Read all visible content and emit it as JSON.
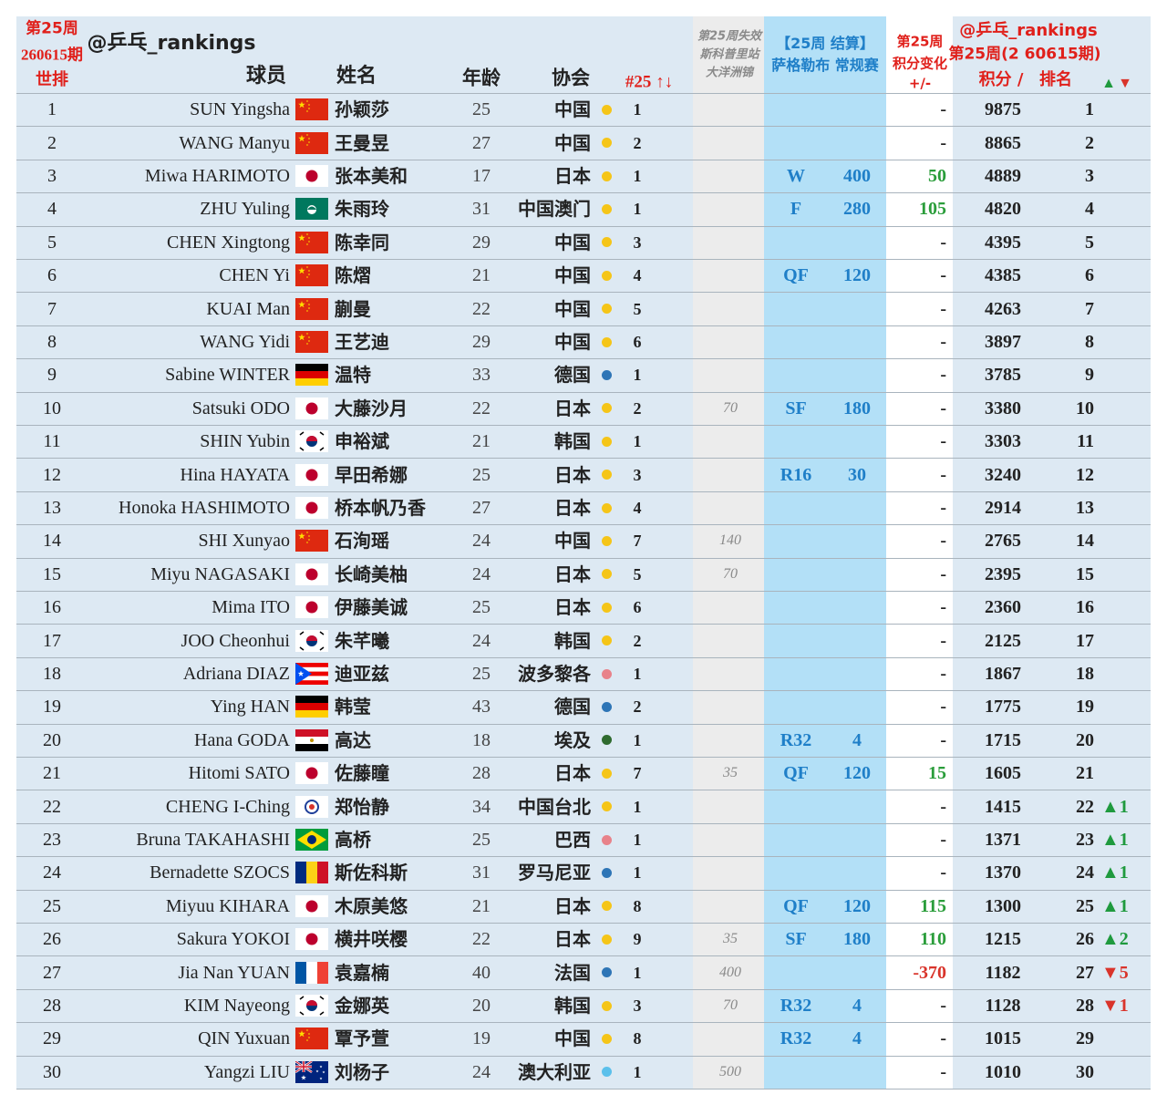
{
  "header": {
    "col_rank": [
      "第25周",
      "260615期",
      "世排"
    ],
    "handle": "@乒乓_rankings",
    "player": "球员",
    "name": "姓名",
    "age": "年龄",
    "assoc": "协会",
    "assoc_rank": "#25 ↑↓",
    "expired": [
      "第25周失效",
      "斯科普里站",
      "大洋洲锦"
    ],
    "event": [
      "【25周 结算】",
      "萨格勒布 常规赛"
    ],
    "change": [
      "第25周",
      "积分变化",
      "+/-"
    ],
    "current": [
      "@乒乓_rankings",
      "第25周(2 60615期)",
      "积分 /",
      "排名"
    ],
    "arrows": [
      "▲",
      "▼"
    ]
  },
  "rows": [
    {
      "rank": "1",
      "en": "SUN Yingsha",
      "flag": "cn",
      "cn": "孙颖莎",
      "age": "25",
      "assoc": "中国",
      "dot": "#f5c518",
      "arank": "1",
      "change": "-",
      "points": "9875",
      "cur": "1"
    },
    {
      "rank": "2",
      "en": "WANG Manyu",
      "flag": "cn",
      "cn": "王曼昱",
      "age": "27",
      "assoc": "中国",
      "dot": "#f5c518",
      "arank": "2",
      "change": "-",
      "points": "8865",
      "cur": "2"
    },
    {
      "rank": "3",
      "en": "Miwa HARIMOTO",
      "flag": "jp",
      "cn": "张本美和",
      "age": "17",
      "assoc": "日本",
      "dot": "#f5c518",
      "arank": "1",
      "round": "W",
      "rpts": "400",
      "change": "50",
      "change_color": "#2a9d3a",
      "points": "4889",
      "cur": "3"
    },
    {
      "rank": "4",
      "en": "ZHU Yuling",
      "flag": "mo",
      "cn": "朱雨玲",
      "age": "31",
      "assoc": "中国澳门",
      "dot": "#f5c518",
      "arank": "1",
      "round": "F",
      "rpts": "280",
      "change": "105",
      "change_color": "#2a9d3a",
      "points": "4820",
      "cur": "4"
    },
    {
      "rank": "5",
      "en": "CHEN Xingtong",
      "flag": "cn",
      "cn": "陈幸同",
      "age": "29",
      "assoc": "中国",
      "dot": "#f5c518",
      "arank": "3",
      "change": "-",
      "points": "4395",
      "cur": "5"
    },
    {
      "rank": "6",
      "en": "CHEN Yi",
      "flag": "cn",
      "cn": "陈熠",
      "age": "21",
      "assoc": "中国",
      "dot": "#f5c518",
      "arank": "4",
      "round": "QF",
      "rpts": "120",
      "change": "-",
      "points": "4385",
      "cur": "6"
    },
    {
      "rank": "7",
      "en": "KUAI Man",
      "flag": "cn",
      "cn": "蒯曼",
      "age": "22",
      "assoc": "中国",
      "dot": "#f5c518",
      "arank": "5",
      "change": "-",
      "points": "4263",
      "cur": "7"
    },
    {
      "rank": "8",
      "en": "WANG Yidi",
      "flag": "cn",
      "cn": "王艺迪",
      "age": "29",
      "assoc": "中国",
      "dot": "#f5c518",
      "arank": "6",
      "change": "-",
      "points": "3897",
      "cur": "8"
    },
    {
      "rank": "9",
      "en": "Sabine WINTER",
      "flag": "de",
      "cn": "温特",
      "age": "33",
      "assoc": "德国",
      "dot": "#2e75b6",
      "arank": "1",
      "change": "-",
      "points": "3785",
      "cur": "9"
    },
    {
      "rank": "10",
      "en": "Satsuki ODO",
      "flag": "jp",
      "cn": "大藤沙月",
      "age": "22",
      "assoc": "日本",
      "dot": "#f5c518",
      "arank": "2",
      "expired": "70",
      "round": "SF",
      "rpts": "180",
      "change": "-",
      "points": "3380",
      "cur": "10"
    },
    {
      "rank": "11",
      "en": "SHIN Yubin",
      "flag": "kr",
      "cn": "申裕斌",
      "age": "21",
      "assoc": "韩国",
      "dot": "#f5c518",
      "arank": "1",
      "change": "-",
      "points": "3303",
      "cur": "11"
    },
    {
      "rank": "12",
      "en": "Hina HAYATA",
      "flag": "jp",
      "cn": "早田希娜",
      "age": "25",
      "assoc": "日本",
      "dot": "#f5c518",
      "arank": "3",
      "round": "R16",
      "rpts": "30",
      "change": "-",
      "points": "3240",
      "cur": "12"
    },
    {
      "rank": "13",
      "en": "Honoka HASHIMOTO",
      "flag": "jp",
      "cn": "桥本帆乃香",
      "age": "27",
      "assoc": "日本",
      "dot": "#f5c518",
      "arank": "4",
      "change": "-",
      "points": "2914",
      "cur": "13"
    },
    {
      "rank": "14",
      "en": "SHI Xunyao",
      "flag": "cn",
      "cn": "石洵瑶",
      "age": "24",
      "assoc": "中国",
      "dot": "#f5c518",
      "arank": "7",
      "expired": "140",
      "change": "-",
      "points": "2765",
      "cur": "14"
    },
    {
      "rank": "15",
      "en": "Miyu NAGASAKI",
      "flag": "jp",
      "cn": "长崎美柚",
      "age": "24",
      "assoc": "日本",
      "dot": "#f5c518",
      "arank": "5",
      "expired": "70",
      "change": "-",
      "points": "2395",
      "cur": "15"
    },
    {
      "rank": "16",
      "en": "Mima ITO",
      "flag": "jp",
      "cn": "伊藤美诚",
      "age": "25",
      "assoc": "日本",
      "dot": "#f5c518",
      "arank": "6",
      "change": "-",
      "points": "2360",
      "cur": "16"
    },
    {
      "rank": "17",
      "en": "JOO Cheonhui",
      "flag": "kr",
      "cn": "朱芊曦",
      "age": "24",
      "assoc": "韩国",
      "dot": "#f5c518",
      "arank": "2",
      "change": "-",
      "points": "2125",
      "cur": "17"
    },
    {
      "rank": "18",
      "en": "Adriana DIAZ",
      "flag": "pr",
      "cn": "迪亚兹",
      "age": "25",
      "assoc": "波多黎各",
      "dot": "#e8828a",
      "arank": "1",
      "change": "-",
      "points": "1867",
      "cur": "18"
    },
    {
      "rank": "19",
      "en": "Ying HAN",
      "flag": "de",
      "cn": "韩莹",
      "age": "43",
      "assoc": "德国",
      "dot": "#2e75b6",
      "arank": "2",
      "change": "-",
      "points": "1775",
      "cur": "19"
    },
    {
      "rank": "20",
      "en": "Hana GODA",
      "flag": "eg",
      "cn": "高达",
      "age": "18",
      "assoc": "埃及",
      "dot": "#2f6b2f",
      "arank": "1",
      "round": "R32",
      "rpts": "4",
      "change": "-",
      "points": "1715",
      "cur": "20"
    },
    {
      "rank": "21",
      "en": "Hitomi SATO",
      "flag": "jp",
      "cn": "佐藤瞳",
      "age": "28",
      "assoc": "日本",
      "dot": "#f5c518",
      "arank": "7",
      "expired": "35",
      "round": "QF",
      "rpts": "120",
      "change": "15",
      "change_color": "#2a9d3a",
      "points": "1605",
      "cur": "21"
    },
    {
      "rank": "22",
      "en": "CHENG I-Ching",
      "flag": "tw",
      "cn": "郑怡静",
      "age": "34",
      "assoc": "中国台北",
      "dot": "#f5c518",
      "arank": "1",
      "change": "-",
      "points": "1415",
      "cur": "22",
      "move": "▲1",
      "move_color": "#1f9a3e"
    },
    {
      "rank": "23",
      "en": "Bruna TAKAHASHI",
      "flag": "br",
      "cn": "高桥",
      "age": "25",
      "assoc": "巴西",
      "dot": "#e8828a",
      "arank": "1",
      "change": "-",
      "points": "1371",
      "cur": "23",
      "move": "▲1",
      "move_color": "#1f9a3e"
    },
    {
      "rank": "24",
      "en": "Bernadette SZOCS",
      "flag": "ro",
      "cn": "斯佐科斯",
      "age": "31",
      "assoc": "罗马尼亚",
      "dot": "#2e75b6",
      "arank": "1",
      "change": "-",
      "points": "1370",
      "cur": "24",
      "move": "▲1",
      "move_color": "#1f9a3e"
    },
    {
      "rank": "25",
      "en": "Miyuu KIHARA",
      "flag": "jp",
      "cn": "木原美悠",
      "age": "21",
      "assoc": "日本",
      "dot": "#f5c518",
      "arank": "8",
      "round": "QF",
      "rpts": "120",
      "change": "115",
      "change_color": "#2a9d3a",
      "points": "1300",
      "cur": "25",
      "move": "▲1",
      "move_color": "#1f9a3e"
    },
    {
      "rank": "26",
      "en": "Sakura YOKOI",
      "flag": "jp",
      "cn": "横井咲樱",
      "age": "22",
      "assoc": "日本",
      "dot": "#f5c518",
      "arank": "9",
      "expired": "35",
      "round": "SF",
      "rpts": "180",
      "change": "110",
      "change_color": "#2a9d3a",
      "points": "1215",
      "cur": "26",
      "move": "▲2",
      "move_color": "#1f9a3e"
    },
    {
      "rank": "27",
      "en": "Jia Nan YUAN",
      "flag": "fr",
      "cn": "袁嘉楠",
      "age": "40",
      "assoc": "法国",
      "dot": "#2e75b6",
      "arank": "1",
      "expired": "400",
      "change": "-370",
      "change_color": "#d9342b",
      "points": "1182",
      "cur": "27",
      "move": "▼5",
      "move_color": "#d9342b"
    },
    {
      "rank": "28",
      "en": "KIM Nayeong",
      "flag": "kr",
      "cn": "金娜英",
      "age": "20",
      "assoc": "韩国",
      "dot": "#f5c518",
      "arank": "3",
      "expired": "70",
      "round": "R32",
      "rpts": "4",
      "change": "-",
      "points": "1128",
      "cur": "28",
      "move": "▼1",
      "move_color": "#d9342b"
    },
    {
      "rank": "29",
      "en": "QIN Yuxuan",
      "flag": "cn",
      "cn": "覃予萱",
      "age": "19",
      "assoc": "中国",
      "dot": "#f5c518",
      "arank": "8",
      "round": "R32",
      "rpts": "4",
      "change": "-",
      "points": "1015",
      "cur": "29"
    },
    {
      "rank": "30",
      "en": "Yangzi LIU",
      "flag": "au",
      "cn": "刘杨子",
      "age": "24",
      "assoc": "澳大利亚",
      "dot": "#5bc0eb",
      "arank": "1",
      "expired": "500",
      "change": "-",
      "points": "1010",
      "cur": "30"
    }
  ]
}
